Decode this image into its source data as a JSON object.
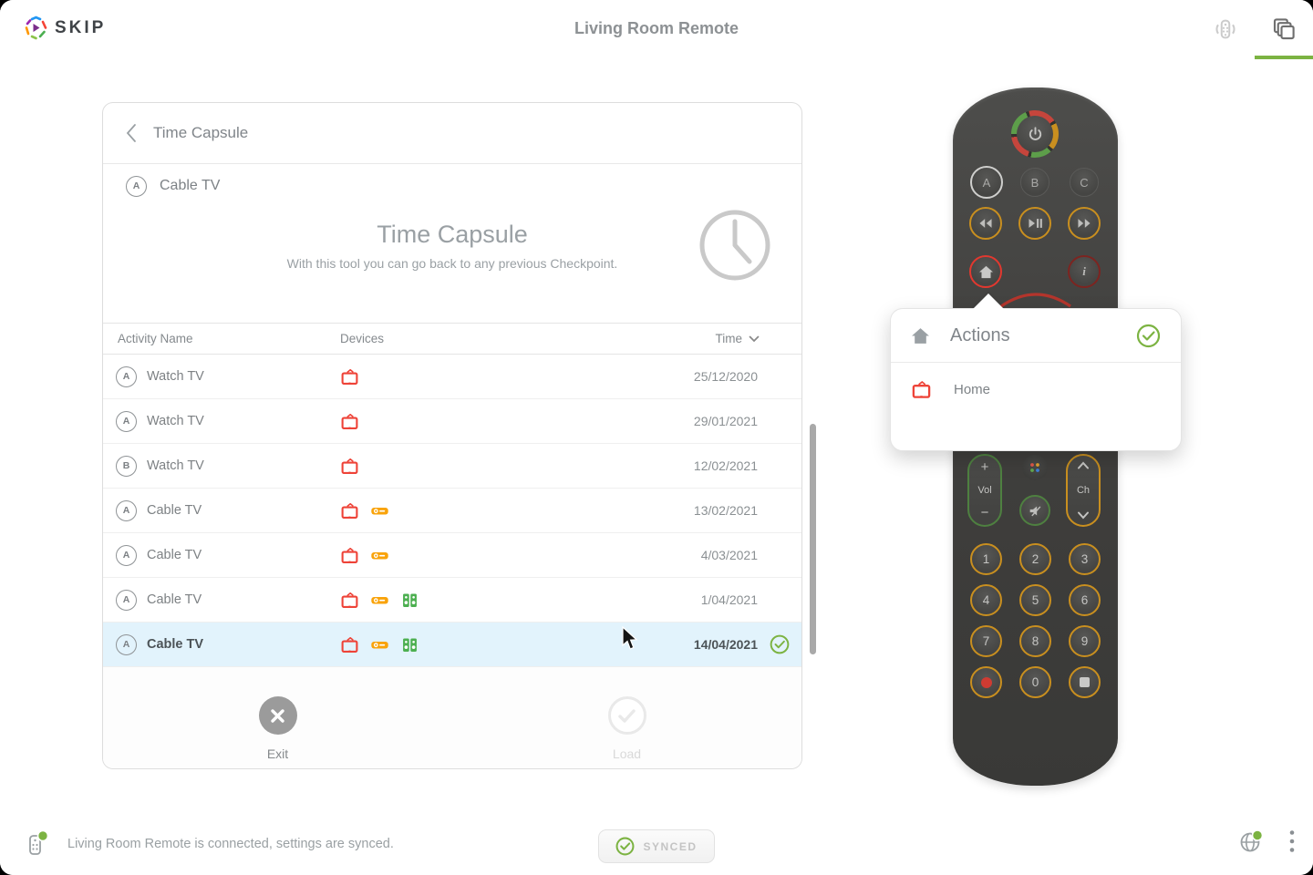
{
  "header": {
    "logo_text": "SKIP",
    "title": "Living Room Remote"
  },
  "panel": {
    "back_title": "Time Capsule",
    "activity": {
      "badge": "A",
      "name": "Cable TV"
    },
    "hero": {
      "title": "Time Capsule",
      "subtitle": "With this tool you can go back to any previous Checkpoint."
    },
    "table": {
      "columns": [
        "Activity Name",
        "Devices",
        "Time"
      ],
      "sort_column": "Time",
      "rows": [
        {
          "badge": "A",
          "name": "Watch TV",
          "devices": [
            "tv"
          ],
          "time": "25/12/2020",
          "selected": false
        },
        {
          "badge": "A",
          "name": "Watch TV",
          "devices": [
            "tv"
          ],
          "time": "29/01/2021",
          "selected": false
        },
        {
          "badge": "B",
          "name": "Watch TV",
          "devices": [
            "tv"
          ],
          "time": "12/02/2021",
          "selected": false
        },
        {
          "badge": "A",
          "name": "Cable TV",
          "devices": [
            "tv",
            "cablebox"
          ],
          "time": "13/02/2021",
          "selected": false
        },
        {
          "badge": "A",
          "name": "Cable TV",
          "devices": [
            "tv",
            "cablebox"
          ],
          "time": "4/03/2021",
          "selected": false
        },
        {
          "badge": "A",
          "name": "Cable TV",
          "devices": [
            "tv",
            "cablebox",
            "speakers"
          ],
          "time": "1/04/2021",
          "selected": false
        },
        {
          "badge": "A",
          "name": "Cable TV",
          "devices": [
            "tv",
            "cablebox",
            "speakers"
          ],
          "time": "14/04/2021",
          "selected": true
        }
      ]
    },
    "footer": {
      "exit_label": "Exit",
      "load_label": "Load"
    }
  },
  "popover": {
    "title": "Actions",
    "items": [
      {
        "icon": "tv",
        "label": "Home"
      }
    ]
  },
  "remote": {
    "abc": [
      "A",
      "B",
      "C"
    ],
    "info_label": "i",
    "vol": {
      "plus": "+",
      "label": "Vol",
      "minus": "−"
    },
    "ch": {
      "label": "Ch"
    },
    "digits": [
      "1",
      "2",
      "3",
      "4",
      "5",
      "6",
      "7",
      "8",
      "9",
      "0"
    ]
  },
  "statusbar": {
    "message": "Living Room Remote is connected, settings are synced.",
    "synced_label": "SYNCED"
  },
  "colors": {
    "accent_green": "#7cb342",
    "ring_orange": "#c98f1f",
    "device_red": "#ee4338",
    "device_orange": "#f9a30a",
    "device_green": "#4caf50",
    "selected_row_bg": "#e2f3fc",
    "home_ring_red": "#e2382f"
  }
}
